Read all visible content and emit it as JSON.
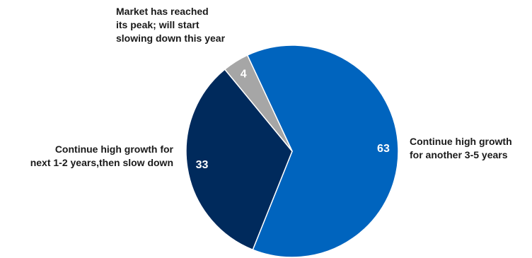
{
  "chart_data": {
    "type": "pie",
    "slices": [
      {
        "label_lines": [
          "Continue high growth",
          "for another 3-5 years"
        ],
        "value": 63,
        "value_label": "63",
        "color": "#0064be"
      },
      {
        "label_lines": [
          "Continue high growth for",
          "next 1-2 years,then slow down"
        ],
        "value": 33,
        "value_label": "33",
        "color": "#002a5c"
      },
      {
        "label_lines": [
          "Market has reached",
          "its peak; will start",
          "slowing down this year"
        ],
        "value": 4,
        "value_label": "4",
        "color": "#a6a6a6"
      }
    ],
    "legend": "none",
    "colors": {
      "background": "#ffffff",
      "label_text": "#1a1a1a",
      "value_text": "#ffffff"
    }
  }
}
